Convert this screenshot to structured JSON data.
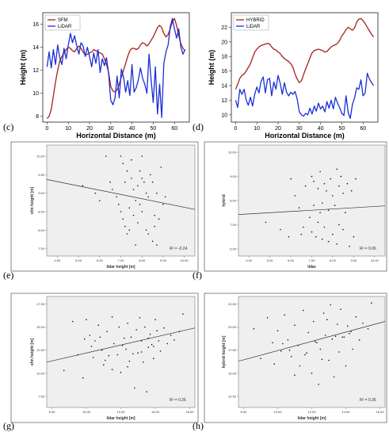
{
  "colors": {
    "red": "#a8201c",
    "blue": "#1a2fd6",
    "scatter_bg": "#efefef"
  },
  "panel_labels": [
    "(c)",
    "(d)",
    "(e)",
    "(f)",
    "(g)",
    "(h)"
  ],
  "chart_data": [
    {
      "type": "line",
      "panel": "(c)",
      "xlabel": "Horizontal Distance (m)",
      "ylabel": "Height (m)",
      "xlim": [
        -2,
        67
      ],
      "ylim": [
        7.5,
        17
      ],
      "xticks": [
        0,
        10,
        20,
        30,
        40,
        50,
        60
      ],
      "yticks": [
        8,
        10,
        12,
        14,
        16
      ],
      "legend": "top-left",
      "series": [
        {
          "name": "SFM",
          "color": "#a8201c",
          "x": [
            0,
            1,
            2,
            3,
            4,
            5,
            6,
            7,
            8,
            9,
            10,
            11,
            12,
            13,
            14,
            15,
            16,
            17,
            18,
            19,
            20,
            21,
            22,
            23,
            24,
            25,
            26,
            27,
            28,
            29,
            30,
            31,
            32,
            33,
            34,
            35,
            36,
            37,
            38,
            39,
            40,
            41,
            42,
            43,
            44,
            45,
            46,
            47,
            48,
            49,
            50,
            51,
            52,
            53,
            54,
            55,
            56,
            57,
            58,
            59,
            60,
            61,
            62,
            63,
            64,
            65
          ],
          "y": [
            7.8,
            8.0,
            8.6,
            9.8,
            11.0,
            12.0,
            12.8,
            13.2,
            13.5,
            13.8,
            14.0,
            13.9,
            13.7,
            13.6,
            13.9,
            14.1,
            13.9,
            13.6,
            13.3,
            13.4,
            13.5,
            13.6,
            13.8,
            13.7,
            13.6,
            13.5,
            13.4,
            13.0,
            12.5,
            11.8,
            10.6,
            10.2,
            10.1,
            10.3,
            10.8,
            11.4,
            12.0,
            12.6,
            13.2,
            13.7,
            13.9,
            13.9,
            13.8,
            13.9,
            14.2,
            14.4,
            14.3,
            14.1,
            14.3,
            14.6,
            14.9,
            15.3,
            15.7,
            15.9,
            15.7,
            15.2,
            14.9,
            15.1,
            15.6,
            16.2,
            16.5,
            15.9,
            15.0,
            14.3,
            13.9,
            13.7
          ]
        },
        {
          "name": "LiDAR",
          "color": "#1a2fd6",
          "x": [
            0,
            1,
            2,
            3,
            4,
            5,
            6,
            7,
            8,
            9,
            10,
            11,
            12,
            13,
            14,
            15,
            16,
            17,
            18,
            19,
            20,
            21,
            22,
            23,
            24,
            25,
            26,
            27,
            28,
            29,
            30,
            31,
            32,
            33,
            34,
            35,
            36,
            37,
            38,
            39,
            40,
            41,
            42,
            43,
            44,
            45,
            46,
            47,
            48,
            49,
            50,
            51,
            52,
            53,
            54,
            55,
            56,
            57,
            58,
            59,
            60,
            61,
            62,
            63,
            64,
            65
          ],
          "y": [
            12.3,
            13.6,
            12.2,
            13.8,
            12.5,
            14.2,
            13.1,
            12.5,
            13.9,
            13.0,
            14.2,
            15.2,
            14.4,
            15.0,
            14.1,
            13.4,
            14.4,
            14.1,
            13.2,
            14.0,
            13.2,
            12.3,
            13.5,
            12.6,
            13.8,
            11.8,
            13.0,
            12.4,
            13.1,
            11.7,
            9.4,
            9.0,
            9.6,
            11.5,
            9.6,
            12.1,
            11.4,
            10.1,
            11.1,
            9.8,
            12.5,
            10.1,
            10.5,
            11.2,
            12.2,
            11.3,
            10.8,
            10.0,
            13.4,
            11.2,
            9.2,
            12.3,
            8.2,
            10.8,
            7.9,
            12.6,
            13.6,
            14.2,
            15.8,
            16.5,
            15.6,
            14.8,
            15.6,
            14.0,
            13.4,
            13.8
          ]
        }
      ]
    },
    {
      "type": "line",
      "panel": "(d)",
      "xlabel": "Horizontal Distance (m)",
      "ylabel": "Height (m)",
      "xlim": [
        -2,
        67
      ],
      "ylim": [
        9,
        24
      ],
      "xticks": [
        0,
        10,
        20,
        30,
        40,
        50,
        60
      ],
      "yticks": [
        10,
        12,
        14,
        16,
        18,
        20,
        22
      ],
      "legend": "top-left",
      "series": [
        {
          "name": "HYBRID",
          "color": "#a8201c",
          "x": [
            0,
            1,
            2,
            3,
            4,
            5,
            6,
            7,
            8,
            9,
            10,
            11,
            12,
            13,
            14,
            15,
            16,
            17,
            18,
            19,
            20,
            21,
            22,
            23,
            24,
            25,
            26,
            27,
            28,
            29,
            30,
            31,
            32,
            33,
            34,
            35,
            36,
            37,
            38,
            39,
            40,
            41,
            42,
            43,
            44,
            45,
            46,
            47,
            48,
            49,
            50,
            51,
            52,
            53,
            54,
            55,
            56,
            57,
            58,
            59,
            60,
            61,
            62,
            63,
            64,
            65
          ],
          "y": [
            13.5,
            14.2,
            15.0,
            15.4,
            15.6,
            16.0,
            16.5,
            17.0,
            17.8,
            18.6,
            19.0,
            19.3,
            19.5,
            19.6,
            19.7,
            19.8,
            19.7,
            19.3,
            19.0,
            18.9,
            18.6,
            18.4,
            18.0,
            17.7,
            17.5,
            17.3,
            17.0,
            16.5,
            15.6,
            14.9,
            14.4,
            14.7,
            15.5,
            16.3,
            17.0,
            17.8,
            18.5,
            18.8,
            18.9,
            19.0,
            18.9,
            18.8,
            18.6,
            18.7,
            19.0,
            19.3,
            19.5,
            19.6,
            19.8,
            20.2,
            20.8,
            21.2,
            21.7,
            22.0,
            21.8,
            21.6,
            21.9,
            22.7,
            23.1,
            23.2,
            22.9,
            22.5,
            22.0,
            21.5,
            21.0,
            20.7
          ]
        },
        {
          "name": "LiDAR",
          "color": "#1a2fd6",
          "x": [
            0,
            1,
            2,
            3,
            4,
            5,
            6,
            7,
            8,
            9,
            10,
            11,
            12,
            13,
            14,
            15,
            16,
            17,
            18,
            19,
            20,
            21,
            22,
            23,
            24,
            25,
            26,
            27,
            28,
            29,
            30,
            31,
            32,
            33,
            34,
            35,
            36,
            37,
            38,
            39,
            40,
            41,
            42,
            43,
            44,
            45,
            46,
            47,
            48,
            49,
            50,
            51,
            52,
            53,
            54,
            55,
            56,
            57,
            58,
            59,
            60,
            61,
            62,
            63,
            64,
            65
          ],
          "y": [
            12.0,
            11.0,
            13.5,
            12.8,
            13.5,
            12.0,
            11.3,
            12.4,
            11.2,
            12.8,
            13.8,
            13.0,
            14.6,
            15.2,
            13.0,
            14.8,
            15.0,
            12.6,
            14.5,
            13.5,
            15.4,
            14.3,
            12.8,
            14.4,
            13.1,
            12.6,
            13.1,
            12.8,
            13.2,
            12.2,
            10.4,
            10.0,
            9.8,
            10.2,
            10.0,
            10.9,
            10.1,
            11.2,
            10.5,
            11.6,
            10.8,
            11.2,
            10.4,
            11.8,
            10.9,
            12.0,
            10.8,
            12.4,
            11.6,
            11.0,
            10.2,
            9.9,
            12.6,
            10.3,
            9.5,
            11.4,
            12.3,
            13.7,
            13.5,
            14.8,
            12.6,
            13.0,
            15.7,
            14.9,
            14.4,
            14.0
          ]
        }
      ]
    },
    {
      "type": "scatter",
      "panel": "(e)",
      "xlabel": "lidar height [m]",
      "ylabel": "sfm height [m]",
      "xlim": [
        3.5,
        10.5
      ],
      "ylim": [
        7.3,
        10.3
      ],
      "xticks": [
        "4.00",
        "5.00",
        "6.00",
        "7.00",
        "8.00",
        "9.00",
        "10.00"
      ],
      "yticks": [
        "7.50",
        "8.00",
        "8.50",
        "9.00",
        "9.50",
        "10.00"
      ],
      "annotation": "R² = -0.24",
      "fit": {
        "x": [
          3.5,
          10.5
        ],
        "y": [
          9.37,
          8.56
        ]
      },
      "x": [
        5.2,
        5.8,
        6.0,
        6.3,
        6.5,
        6.6,
        6.8,
        6.9,
        7.0,
        7.0,
        7.1,
        7.1,
        7.2,
        7.3,
        7.3,
        7.4,
        7.5,
        7.5,
        7.6,
        7.6,
        7.7,
        7.7,
        7.8,
        7.8,
        7.9,
        7.9,
        8.0,
        8.0,
        8.1,
        8.2,
        8.2,
        8.3,
        8.3,
        8.4,
        8.5,
        8.5,
        8.6,
        8.7,
        8.7,
        8.8,
        8.9,
        9.0,
        9.1,
        7.2,
        7.4,
        8.0,
        8.6
      ],
      "y": [
        9.2,
        9.0,
        8.8,
        10.0,
        9.3,
        9.1,
        8.9,
        8.7,
        8.5,
        10.0,
        9.8,
        8.3,
        8.1,
        7.9,
        9.6,
        8.6,
        9.4,
        9.9,
        9.1,
        8.4,
        8.8,
        7.6,
        9.2,
        8.2,
        9.6,
        8.7,
        8.5,
        10.0,
        9.3,
        8.0,
        9.0,
        8.9,
        7.9,
        9.5,
        7.7,
        9.3,
        8.4,
        9.0,
        7.6,
        8.3,
        9.7,
        8.7,
        8.9,
        9.3,
        8.0,
        9.4,
        8.1
      ]
    },
    {
      "type": "scatter",
      "panel": "(f)",
      "xlabel": "lidar",
      "ylabel": "hybrid",
      "xlim": [
        3.5,
        10.5
      ],
      "ylim": [
        5.7,
        10.3
      ],
      "xticks": [
        "4.00",
        "5.00",
        "6.00",
        "7.00",
        "8.00",
        "9.00",
        "10.00"
      ],
      "yticks": [
        "6.00",
        "7.00",
        "8.00",
        "9.00",
        "10.00"
      ],
      "annotation": "R² = 0.06",
      "fit": {
        "x": [
          3.5,
          10.5
        ],
        "y": [
          7.42,
          7.78
        ]
      },
      "x": [
        4.8,
        5.5,
        5.9,
        6.0,
        6.2,
        6.4,
        6.6,
        6.7,
        6.9,
        7.0,
        7.0,
        7.1,
        7.1,
        7.2,
        7.3,
        7.3,
        7.4,
        7.5,
        7.5,
        7.6,
        7.6,
        7.7,
        7.8,
        7.8,
        7.9,
        8.0,
        8.0,
        8.1,
        8.2,
        8.3,
        8.3,
        8.4,
        8.5,
        8.5,
        8.6,
        8.7,
        8.8,
        8.9,
        9.0,
        9.1,
        7.4,
        8.2,
        6.5
      ],
      "y": [
        7.1,
        6.8,
        6.5,
        8.9,
        8.2,
        7.7,
        6.9,
        8.6,
        7.3,
        9.0,
        6.7,
        8.8,
        7.8,
        6.5,
        7.1,
        8.5,
        9.2,
        6.4,
        7.9,
        8.7,
        6.9,
        8.4,
        6.3,
        7.6,
        8.9,
        6.6,
        8.2,
        7.8,
        6.2,
        8.6,
        7.0,
        9.0,
        6.8,
        8.3,
        7.5,
        8.7,
        6.1,
        8.4,
        6.5,
        8.9,
        7.5,
        9.3,
        6.6
      ]
    },
    {
      "type": "scatter",
      "panel": "(g)",
      "xlabel": "lidar height [m]",
      "ylabel": "sfm height [m]",
      "xlim": [
        7.7,
        16.3
      ],
      "ylim": [
        6.3,
        18.3
      ],
      "xticks": [
        "8.00",
        "10.00",
        "12.00",
        "14.00",
        "16.00"
      ],
      "yticks": [
        "7.50",
        "10.00",
        "12.50",
        "15.00",
        "17.50"
      ],
      "annotation": "R² = 0.26",
      "fit": {
        "x": [
          7.7,
          16.3
        ],
        "y": [
          11.2,
          14.9
        ]
      },
      "x": [
        8.7,
        9.2,
        9.5,
        9.8,
        10.0,
        10.2,
        10.4,
        10.5,
        10.7,
        10.9,
        11.0,
        11.2,
        11.3,
        11.5,
        11.6,
        11.8,
        11.9,
        12.0,
        12.2,
        12.3,
        12.4,
        12.5,
        12.6,
        12.8,
        12.9,
        13.0,
        13.1,
        13.2,
        13.3,
        13.4,
        13.5,
        13.6,
        13.7,
        13.8,
        13.9,
        14.0,
        14.2,
        14.3,
        14.5,
        14.7,
        14.9,
        15.1,
        15.4,
        15.6,
        10.3,
        11.1,
        12.7,
        13.6,
        12.1,
        13.2,
        14.1,
        11.5,
        9.9,
        12.4,
        13.9,
        10.8
      ],
      "y": [
        10.3,
        15.6,
        12.0,
        9.5,
        15.8,
        14.1,
        11.7,
        13.5,
        15.2,
        12.5,
        10.9,
        14.5,
        11.9,
        16.1,
        13.2,
        12.0,
        15.0,
        10.1,
        13.8,
        12.6,
        15.4,
        11.3,
        13.9,
        8.4,
        14.7,
        12.2,
        16.0,
        13.5,
        11.2,
        15.0,
        8.0,
        12.8,
        14.2,
        13.1,
        11.6,
        15.8,
        13.5,
        12.4,
        14.9,
        13.2,
        14.1,
        13.6,
        14.5,
        16.4,
        12.9,
        11.4,
        12.1,
        13.8,
        13.0,
        12.3,
        14.6,
        10.4,
        13.7,
        10.7,
        12.9,
        13.9
      ]
    },
    {
      "type": "scatter",
      "panel": "(h)",
      "xlabel": "lidar height [m]",
      "ylabel": "hybrid height [m]",
      "xlim": [
        7.7,
        16.3
      ],
      "ylim": [
        11.3,
        23.3
      ],
      "xticks": [
        "8.00",
        "10.00",
        "12.00",
        "14.00",
        "16.00"
      ],
      "yticks": [
        "12.50",
        "15.00",
        "17.50",
        "20.00",
        "22.50"
      ],
      "annotation": "R² = 0.36",
      "fit": {
        "x": [
          7.7,
          16.3
        ],
        "y": [
          16.3,
          20.6
        ]
      },
      "x": [
        8.6,
        9.0,
        9.4,
        9.7,
        10.0,
        10.2,
        10.4,
        10.6,
        10.8,
        11.0,
        11.2,
        11.3,
        11.5,
        11.7,
        11.8,
        12.0,
        12.1,
        12.3,
        12.4,
        12.5,
        12.7,
        12.8,
        13.0,
        13.1,
        13.2,
        13.3,
        13.5,
        13.6,
        13.7,
        13.8,
        14.0,
        14.1,
        14.3,
        14.4,
        14.6,
        14.8,
        15.0,
        15.3,
        15.5,
        10.3,
        11.0,
        12.6,
        13.4,
        12.2,
        13.9,
        11.6,
        9.8,
        12.9,
        14.2,
        10.7
      ],
      "y": [
        19.8,
        16.6,
        21.0,
        18.3,
        19.6,
        17.4,
        21.3,
        18.6,
        16.8,
        20.2,
        18.0,
        15.8,
        21.8,
        17.2,
        19.4,
        15.0,
        20.6,
        18.3,
        13.8,
        17.6,
        21.5,
        19.1,
        16.4,
        22.4,
        18.7,
        14.6,
        20.3,
        17.3,
        21.9,
        18.9,
        15.8,
        20.1,
        19.5,
        17.6,
        21.1,
        18.6,
        20.4,
        19.8,
        22.6,
        18.2,
        14.8,
        16.5,
        19.0,
        18.4,
        18.9,
        17.0,
        16.0,
        20.8,
        19.3,
        17.5
      ]
    }
  ]
}
